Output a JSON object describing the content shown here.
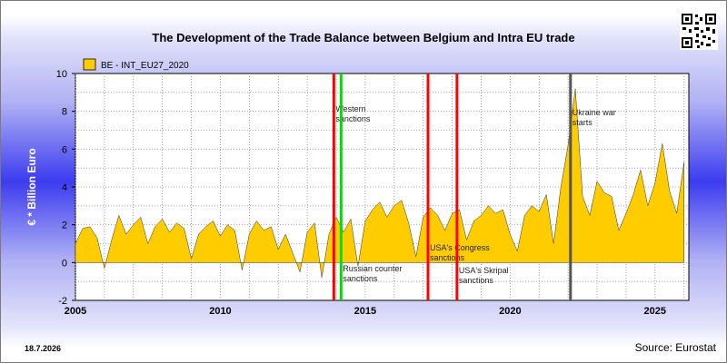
{
  "page": {
    "date_stamp": "18.7.2026",
    "source": "Source: Eurostat"
  },
  "chart_data": {
    "type": "area",
    "title": "The Development of the Trade Balance between Belgium and Intra EU trade",
    "xlabel": "",
    "ylabel": "€ * Billion Euro",
    "ylim": [
      -2,
      10
    ],
    "xlim": [
      "2005-01",
      "2026-03"
    ],
    "y_ticks": [
      "-2",
      "0",
      "2",
      "4",
      "6",
      "8",
      "10"
    ],
    "x_ticks": [
      "2005",
      "2010",
      "2015",
      "2020",
      "2025"
    ],
    "grid": true,
    "legend_position": "top-left",
    "series_color": "#ffcc00",
    "series": [
      {
        "name": "BE - INT_EU27_2020",
        "x": [
          "2005-01",
          "2005-04",
          "2005-07",
          "2005-10",
          "2006-01",
          "2006-04",
          "2006-07",
          "2006-10",
          "2007-01",
          "2007-04",
          "2007-07",
          "2007-10",
          "2008-01",
          "2008-04",
          "2008-07",
          "2008-10",
          "2009-01",
          "2009-04",
          "2009-07",
          "2009-10",
          "2010-01",
          "2010-04",
          "2010-07",
          "2010-10",
          "2011-01",
          "2011-04",
          "2011-07",
          "2011-10",
          "2012-01",
          "2012-04",
          "2012-07",
          "2012-10",
          "2013-01",
          "2013-04",
          "2013-07",
          "2013-10",
          "2014-01",
          "2014-04",
          "2014-07",
          "2014-10",
          "2015-01",
          "2015-04",
          "2015-07",
          "2015-10",
          "2016-01",
          "2016-04",
          "2016-07",
          "2016-10",
          "2017-01",
          "2017-04",
          "2017-07",
          "2017-10",
          "2018-01",
          "2018-04",
          "2018-07",
          "2018-10",
          "2019-01",
          "2019-04",
          "2019-07",
          "2019-10",
          "2020-01",
          "2020-04",
          "2020-07",
          "2020-10",
          "2021-01",
          "2021-04",
          "2021-07",
          "2021-10",
          "2022-01",
          "2022-04",
          "2022-07",
          "2022-10",
          "2023-01",
          "2023-04",
          "2023-07",
          "2023-10",
          "2024-01",
          "2024-04",
          "2024-07",
          "2024-10",
          "2025-01",
          "2025-04",
          "2025-07",
          "2025-10",
          "2026-01"
        ],
        "values": [
          1.0,
          1.8,
          1.9,
          1.3,
          -0.3,
          1.2,
          2.5,
          1.5,
          2.0,
          2.4,
          1.0,
          1.9,
          2.3,
          1.6,
          2.1,
          1.8,
          0.2,
          1.5,
          1.9,
          2.2,
          1.4,
          2.0,
          1.7,
          -0.4,
          1.5,
          2.2,
          1.7,
          1.9,
          0.7,
          1.5,
          0.5,
          -0.5,
          1.6,
          2.1,
          -0.8,
          1.5,
          2.4,
          1.6,
          2.3,
          -0.2,
          2.2,
          2.8,
          3.2,
          2.4,
          3.0,
          3.3,
          2.1,
          0.3,
          2.4,
          2.9,
          2.5,
          1.7,
          2.6,
          2.8,
          1.2,
          2.2,
          2.5,
          3.0,
          2.6,
          2.8,
          1.5,
          0.6,
          2.5,
          3.0,
          2.7,
          3.6,
          1.0,
          4.0,
          6.2,
          9.2,
          3.5,
          2.5,
          4.3,
          3.7,
          3.5,
          1.7,
          2.6,
          3.6,
          4.9,
          3.0,
          4.2,
          6.3,
          3.8,
          2.6,
          5.3
        ]
      }
    ],
    "event_lines": [
      {
        "date": "2013-12",
        "label": "Western sanctions",
        "color": "#ff0000"
      },
      {
        "date": "2014-03",
        "label": "Russian counter sanctions",
        "color": "#00dd00"
      },
      {
        "date": "2017-03",
        "label": "USA's Congress sanctions",
        "color": "#ff0000"
      },
      {
        "date": "2018-03",
        "label": "USA's Skripal sanctions",
        "color": "#ff0000"
      },
      {
        "date": "2022-02",
        "label": "Ukraine war starts",
        "color": "#555555"
      }
    ]
  }
}
